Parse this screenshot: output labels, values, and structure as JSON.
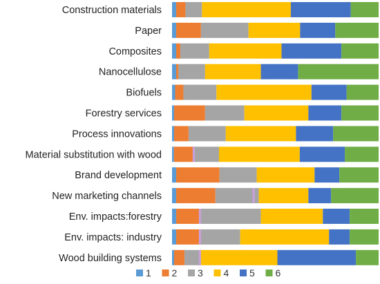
{
  "chart_data": {
    "type": "bar",
    "orientation": "horizontal",
    "stacked": true,
    "normalized": true,
    "categories": [
      "Construction materials",
      "Paper",
      "Composites",
      "Nanocellulose",
      "Biofuels",
      "Forestry services",
      "Process innovations",
      "Material substitution with wood",
      "Brand development",
      "New marketing channels",
      "Env. impacts:forestry",
      "Env. impacts: industry",
      "Wood building systems"
    ],
    "series": [
      {
        "name": "1",
        "color": "#5b9bd5",
        "values": [
          2,
          2,
          2,
          2,
          1.5,
          1,
          1,
          1,
          2,
          2,
          2,
          2,
          1
        ]
      },
      {
        "name": "2",
        "color": "#ed7d31",
        "values": [
          4.5,
          12,
          2,
          1,
          4,
          15,
          7,
          11,
          21,
          19,
          12,
          12,
          5
        ]
      },
      {
        "name": "3",
        "color": "#a5a5a5",
        "values": [
          8,
          23,
          14,
          13,
          16,
          19,
          18,
          13,
          18,
          21,
          29,
          19,
          8
        ]
      },
      {
        "name": "4",
        "color": "#ffc000",
        "values": [
          43,
          25,
          35,
          27,
          46,
          31,
          34,
          43,
          28,
          24,
          30,
          43,
          37
        ]
      },
      {
        "name": "5",
        "color": "#4472c4",
        "values": [
          29,
          17,
          29,
          18,
          17,
          16,
          18,
          24,
          12,
          11,
          13,
          10,
          38
        ]
      },
      {
        "name": "6",
        "color": "#70ad47",
        "values": [
          13.5,
          21,
          18,
          39,
          15.5,
          18,
          22,
          18,
          19,
          23,
          14,
          14,
          11
        ]
      }
    ],
    "accent_segments": [
      {
        "category": "Material substitution with wood",
        "color": "#c9a0dc",
        "at": 10.5
      },
      {
        "category": "New marketing channels",
        "color": "#c9a0dc",
        "at": 39.5
      },
      {
        "category": "Env. impacts:forestry",
        "color": "#c9a0dc",
        "at": 13.5
      },
      {
        "category": "Env. impacts: industry",
        "color": "#c9a0dc",
        "at": 13.5
      },
      {
        "category": "Wood building systems",
        "color": "#c9a0dc",
        "at": 13.5
      }
    ],
    "xlim": [
      0,
      100
    ],
    "legend": {
      "position": "bottom",
      "entries": [
        "1",
        "2",
        "3",
        "4",
        "5",
        "6"
      ]
    },
    "title": "",
    "xlabel": "",
    "ylabel": ""
  }
}
